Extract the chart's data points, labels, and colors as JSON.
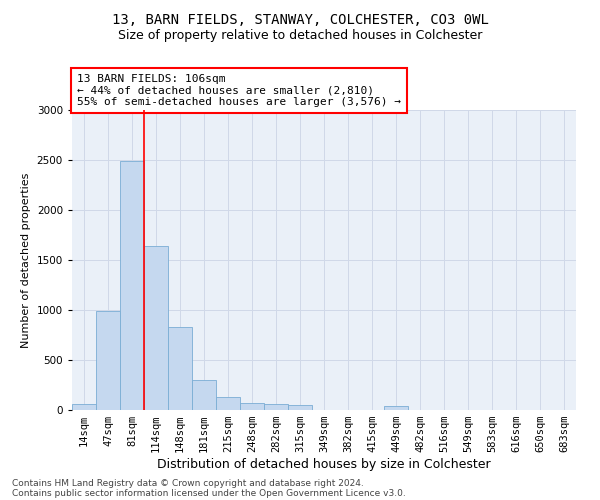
{
  "title1": "13, BARN FIELDS, STANWAY, COLCHESTER, CO3 0WL",
  "title2": "Size of property relative to detached houses in Colchester",
  "xlabel": "Distribution of detached houses by size in Colchester",
  "ylabel": "Number of detached properties",
  "categories": [
    "14sqm",
    "47sqm",
    "81sqm",
    "114sqm",
    "148sqm",
    "181sqm",
    "215sqm",
    "248sqm",
    "282sqm",
    "315sqm",
    "349sqm",
    "382sqm",
    "415sqm",
    "449sqm",
    "482sqm",
    "516sqm",
    "549sqm",
    "583sqm",
    "616sqm",
    "650sqm",
    "683sqm"
  ],
  "values": [
    60,
    990,
    2490,
    1640,
    830,
    300,
    130,
    70,
    60,
    50,
    0,
    0,
    0,
    40,
    0,
    0,
    0,
    0,
    0,
    0,
    0
  ],
  "bar_color": "#c5d8ef",
  "bar_edge_color": "#7aadd4",
  "vline_color": "red",
  "annotation_text": "13 BARN FIELDS: 106sqm\n← 44% of detached houses are smaller (2,810)\n55% of semi-detached houses are larger (3,576) →",
  "annotation_box_color": "white",
  "annotation_box_edge": "red",
  "ylim": [
    0,
    3000
  ],
  "yticks": [
    0,
    500,
    1000,
    1500,
    2000,
    2500,
    3000
  ],
  "footer1": "Contains HM Land Registry data © Crown copyright and database right 2024.",
  "footer2": "Contains public sector information licensed under the Open Government Licence v3.0.",
  "grid_color": "#d0d8e8",
  "bg_color": "#eaf0f8",
  "title1_fontsize": 10,
  "title2_fontsize": 9,
  "xlabel_fontsize": 9,
  "ylabel_fontsize": 8,
  "tick_fontsize": 7.5,
  "annotation_fontsize": 8,
  "footer_fontsize": 6.5
}
